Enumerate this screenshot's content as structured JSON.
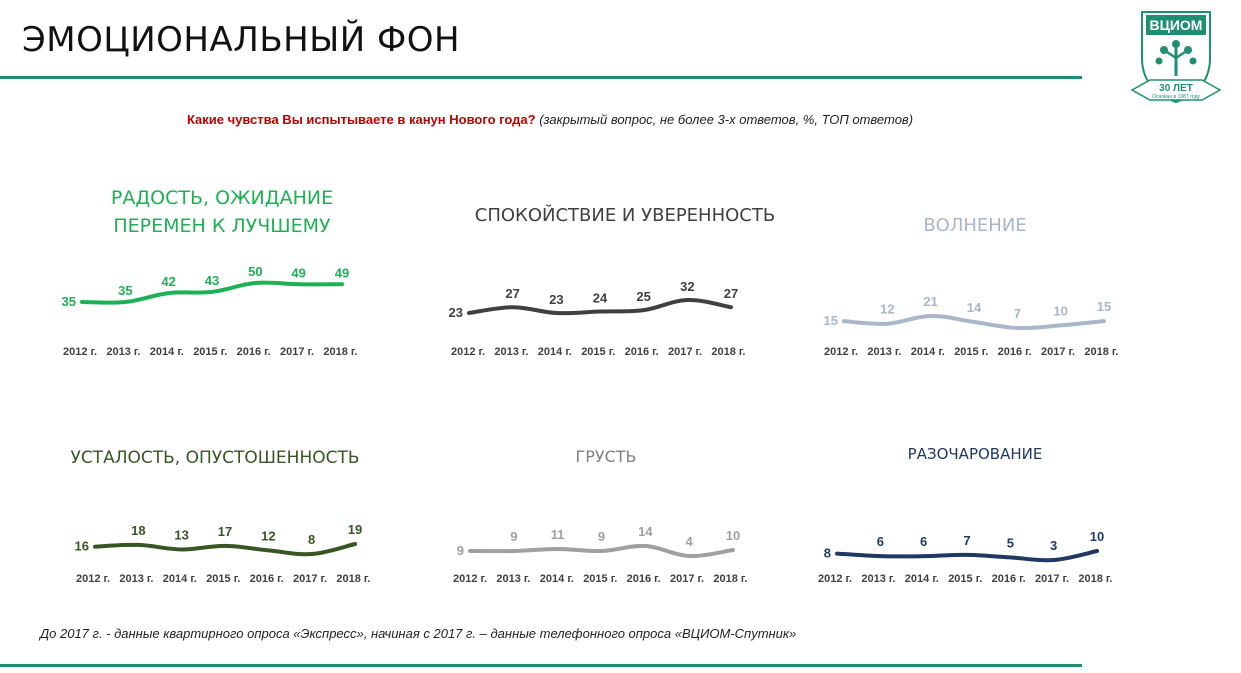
{
  "header": {
    "title": "ЭМОЦИОНАЛЬНЫЙ ФОН",
    "question": "Какие чувства Вы испытываете в канун Нового года?",
    "question_note": "(закрытый вопрос, не более 3-х ответов, %, ТОП ответов)"
  },
  "logo": {
    "name": "ВЦИОМ",
    "years": "30 ЛЕТ",
    "founded": "Основан в 1987 году",
    "color": "#1f8f72"
  },
  "footnote": "До 2017 г. - данные квартирного опроса «Экспресс», начиная с 2017 г. – данные телефонного опроса «ВЦИОМ-Спутник»",
  "chart_data": [
    {
      "type": "line",
      "title": "РАДОСТЬ, ОЖИДАНИЕ ПЕРЕМЕН К ЛУЧШЕМУ",
      "title_lines": [
        "РАДОСТЬ, ОЖИДАНИЕ",
        "ПЕРЕМЕН К ЛУЧШЕМУ"
      ],
      "categories": [
        "2012 г.",
        "2013 г.",
        "2014 г.",
        "2015 г.",
        "2016 г.",
        "2017 г.",
        "2018 г."
      ],
      "values": [
        35,
        35,
        42,
        43,
        50,
        49,
        49
      ],
      "color": "#1db054",
      "label_color": "#1db054",
      "title_color": "#1db054"
    },
    {
      "type": "line",
      "title": "СПОКОЙСТВИЕ И УВЕРЕННОСТЬ",
      "title_lines": [
        "СПОКОЙСТВИЕ И УВЕРЕННОСТЬ"
      ],
      "categories": [
        "2012 г.",
        "2013 г.",
        "2014 г.",
        "2015 г.",
        "2016 г.",
        "2017 г.",
        "2018 г."
      ],
      "values": [
        23,
        27,
        23,
        24,
        25,
        32,
        27
      ],
      "color": "#404040",
      "label_color": "#404040",
      "title_color": "#404040"
    },
    {
      "type": "line",
      "title": "ВОЛНЕНИЕ",
      "title_lines": [
        "ВОЛНЕНИЕ"
      ],
      "categories": [
        "2012 г.",
        "2013 г.",
        "2014 г.",
        "2015 г.",
        "2016 г.",
        "2017 г.",
        "2018 г."
      ],
      "values": [
        15,
        12,
        21,
        14,
        7,
        10,
        15
      ],
      "color": "#aab6c9",
      "label_color": "#aab6c9",
      "title_color": "#aab6c9"
    },
    {
      "type": "line",
      "title": "УСТАЛОСТЬ, ОПУСТОШЕННОСТЬ",
      "title_lines": [
        "УСТАЛОСТЬ, ОПУСТОШЕННОСТЬ"
      ],
      "categories": [
        "2012 г.",
        "2013 г.",
        "2014 г.",
        "2015 г.",
        "2016 г.",
        "2017 г.",
        "2018 г."
      ],
      "values": [
        16,
        18,
        13,
        17,
        12,
        8,
        19
      ],
      "color": "#375623",
      "label_color": "#375623",
      "title_color": "#375623"
    },
    {
      "type": "line",
      "title": "ГРУСТЬ",
      "title_lines": [
        "ГРУСТЬ"
      ],
      "categories": [
        "2012 г.",
        "2013 г.",
        "2014 г.",
        "2015 г.",
        "2016 г.",
        "2017 г.",
        "2018 г."
      ],
      "values": [
        9,
        9,
        11,
        9,
        14,
        4,
        10
      ],
      "color": "#a0a0a0",
      "label_color": "#a0a0a0",
      "title_color": "#808080"
    },
    {
      "type": "line",
      "title": "РАЗОЧАРОВАНИЕ",
      "title_lines": [
        "РАЗОЧАРОВАНИЕ"
      ],
      "categories": [
        "2012 г.",
        "2013 г.",
        "2014 г.",
        "2015 г.",
        "2016 г.",
        "2017 г.",
        "2018 г."
      ],
      "values": [
        8,
        6,
        6,
        7,
        5,
        3,
        10
      ],
      "color": "#1f3864",
      "label_color": "#1f3864",
      "title_color": "#1f3864"
    }
  ]
}
